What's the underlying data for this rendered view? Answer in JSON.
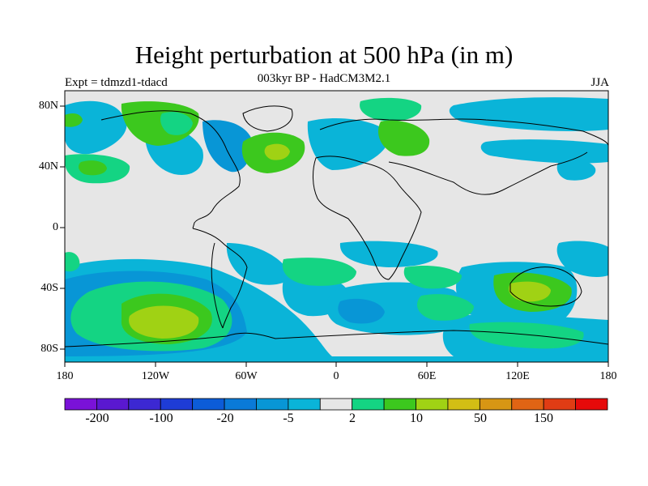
{
  "header": {
    "title": "Height perturbation at 500 hPa (in m)",
    "subtitle": "003kyr BP - HadCM3M2.1",
    "left_label": "Expt = tdmzd1-tdacd",
    "right_label": "JJA"
  },
  "map": {
    "lat_ticks": [
      "80N",
      "40N",
      "0",
      "40S",
      "80S"
    ],
    "lon_ticks": [
      "180",
      "120W",
      "60W",
      "0",
      "60E",
      "120E",
      "180"
    ],
    "background_color": "#e6e6e6"
  },
  "colorbar": {
    "colors": [
      "#7a12d8",
      "#5a18d0",
      "#3c28d2",
      "#1e3cd6",
      "#0c5cd8",
      "#0a7ad8",
      "#0896d6",
      "#0ab4d8",
      "#e6e6e6",
      "#14d483",
      "#3cc81e",
      "#a0d214",
      "#d2be14",
      "#d79614",
      "#e06414",
      "#e03c14",
      "#e60a0a"
    ],
    "labels": [
      "-200",
      "-100",
      "-20",
      "-5",
      "2",
      "10",
      "50",
      "150"
    ]
  }
}
